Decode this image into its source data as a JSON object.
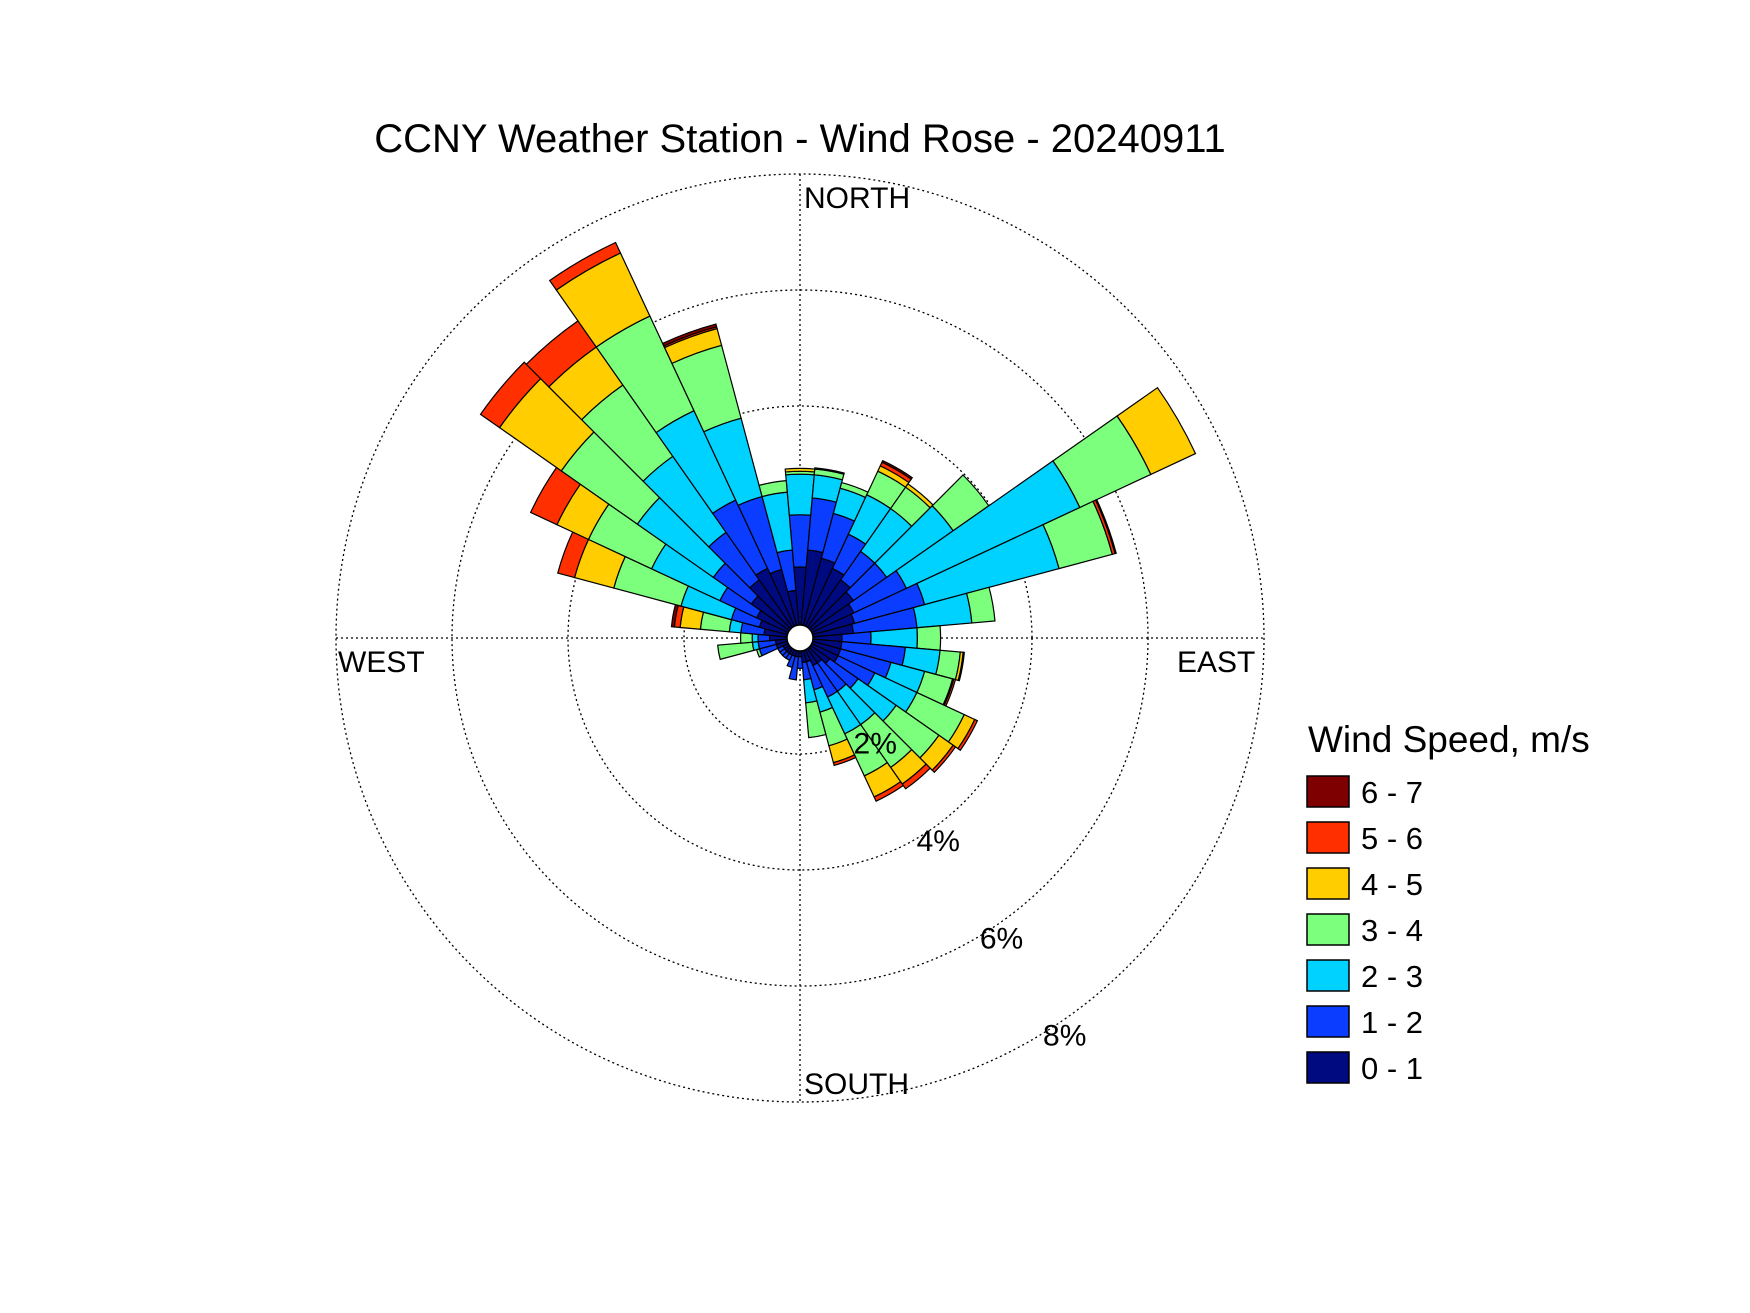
{
  "chart_data": {
    "type": "wind-rose",
    "title": "CCNY Weather Station - Wind Rose - 20240911",
    "direction_labels": {
      "north": "NORTH",
      "east": "EAST",
      "south": "SOUTH",
      "west": "WEST"
    },
    "ring_values": [
      2,
      4,
      6,
      8
    ],
    "ring_labels": [
      "2%",
      "4%",
      "6%",
      "8%"
    ],
    "rmax": 8,
    "unit": "%",
    "legend_title": "Wind Speed, m/s",
    "bins": [
      {
        "label": "0 - 1",
        "color": "#000a80"
      },
      {
        "label": "1 - 2",
        "color": "#0a3dff"
      },
      {
        "label": "2 - 3",
        "color": "#00d2ff"
      },
      {
        "label": "3 - 4",
        "color": "#7cff7c"
      },
      {
        "label": "4 - 5",
        "color": "#ffcd00"
      },
      {
        "label": "5 - 6",
        "color": "#ff2f00"
      },
      {
        "label": "6 - 7",
        "color": "#7f0000"
      }
    ],
    "sector_width_deg": 10,
    "directions_deg": [
      0,
      10,
      20,
      30,
      40,
      50,
      60,
      70,
      80,
      90,
      100,
      110,
      120,
      130,
      140,
      150,
      160,
      170,
      180,
      190,
      200,
      210,
      220,
      230,
      240,
      250,
      260,
      270,
      280,
      290,
      300,
      310,
      320,
      330,
      340,
      350
    ],
    "cumulative_percent": [
      [
        1.0,
        1.9,
        2.6,
        2.65,
        2.7,
        2.7,
        2.7
      ],
      [
        1.3,
        2.2,
        2.6,
        2.7,
        2.72,
        2.72,
        2.72
      ],
      [
        1.2,
        2.0,
        2.45,
        2.55,
        2.55,
        2.55,
        2.55
      ],
      [
        1.1,
        1.75,
        2.5,
        2.95,
        3.05,
        3.12,
        3.15
      ],
      [
        1.0,
        1.6,
        2.5,
        2.95,
        3.02,
        3.02,
        3.02
      ],
      [
        0.9,
        1.6,
        3.0,
        3.75,
        3.75,
        3.75,
        3.75
      ],
      [
        0.8,
        1.8,
        5.1,
        6.45,
        7.3,
        7.3,
        7.3
      ],
      [
        0.75,
        2.0,
        4.4,
        5.35,
        5.35,
        5.4,
        5.42
      ],
      [
        0.7,
        1.8,
        2.75,
        3.15,
        3.15,
        3.15,
        3.15
      ],
      [
        0.5,
        1.0,
        1.8,
        2.2,
        2.2,
        2.2,
        2.2
      ],
      [
        0.5,
        1.6,
        2.2,
        2.55,
        2.6,
        2.62,
        2.62
      ],
      [
        0.5,
        1.4,
        2.0,
        2.5,
        2.52,
        2.55,
        2.55
      ],
      [
        0.5,
        1.2,
        2.0,
        2.9,
        3.1,
        3.15,
        3.15
      ],
      [
        0.4,
        1.0,
        1.8,
        2.7,
        3.0,
        3.05,
        3.05
      ],
      [
        0.3,
        0.9,
        1.6,
        2.5,
        2.85,
        2.95,
        2.95
      ],
      [
        0.3,
        0.9,
        1.6,
        2.4,
        2.8,
        2.88,
        2.88
      ],
      [
        0.2,
        0.7,
        1.1,
        1.7,
        2.0,
        2.05,
        2.05
      ],
      [
        0.2,
        0.5,
        0.9,
        1.5,
        1.5,
        1.5,
        1.5
      ],
      [
        0.1,
        0.3,
        0.3,
        0.3,
        0.3,
        0.3,
        0.3
      ],
      [
        0.1,
        0.5,
        0.5,
        0.5,
        0.5,
        0.5,
        0.5
      ],
      [
        0.1,
        0.3,
        0.3,
        0.3,
        0.3,
        0.3,
        0.3
      ],
      [
        0.1,
        0.2,
        0.2,
        0.2,
        0.2,
        0.2,
        0.2
      ],
      [
        0.1,
        0.2,
        0.2,
        0.2,
        0.2,
        0.2,
        0.2
      ],
      [
        0.1,
        0.2,
        0.2,
        0.2,
        0.2,
        0.2,
        0.2
      ],
      [
        0.1,
        0.2,
        0.2,
        0.2,
        0.2,
        0.2,
        0.2
      ],
      [
        0.2,
        0.5,
        0.5,
        0.55,
        0.55,
        0.55,
        0.55
      ],
      [
        0.2,
        0.5,
        0.6,
        1.2,
        1.2,
        1.2,
        1.2
      ],
      [
        0.3,
        0.5,
        0.6,
        0.8,
        0.8,
        0.8,
        0.8
      ],
      [
        0.4,
        0.8,
        1.0,
        1.5,
        1.85,
        1.95,
        2.0
      ],
      [
        0.5,
        1.0,
        1.9,
        3.1,
        3.8,
        4.1,
        4.1
      ],
      [
        0.6,
        1.3,
        2.6,
        3.8,
        4.4,
        4.9,
        4.9
      ],
      [
        0.8,
        1.6,
        3.2,
        4.8,
        6.1,
        6.5,
        6.5
      ],
      [
        1.0,
        2.0,
        3.6,
        5.1,
        5.9,
        6.45,
        6.45
      ],
      [
        1.1,
        2.4,
        4.1,
        5.9,
        7.1,
        7.3,
        7.3
      ],
      [
        1.0,
        2.3,
        3.7,
        5.0,
        5.3,
        5.33,
        5.38
      ],
      [
        0.6,
        1.3,
        2.3,
        2.5,
        2.5,
        2.5,
        2.5
      ]
    ]
  }
}
